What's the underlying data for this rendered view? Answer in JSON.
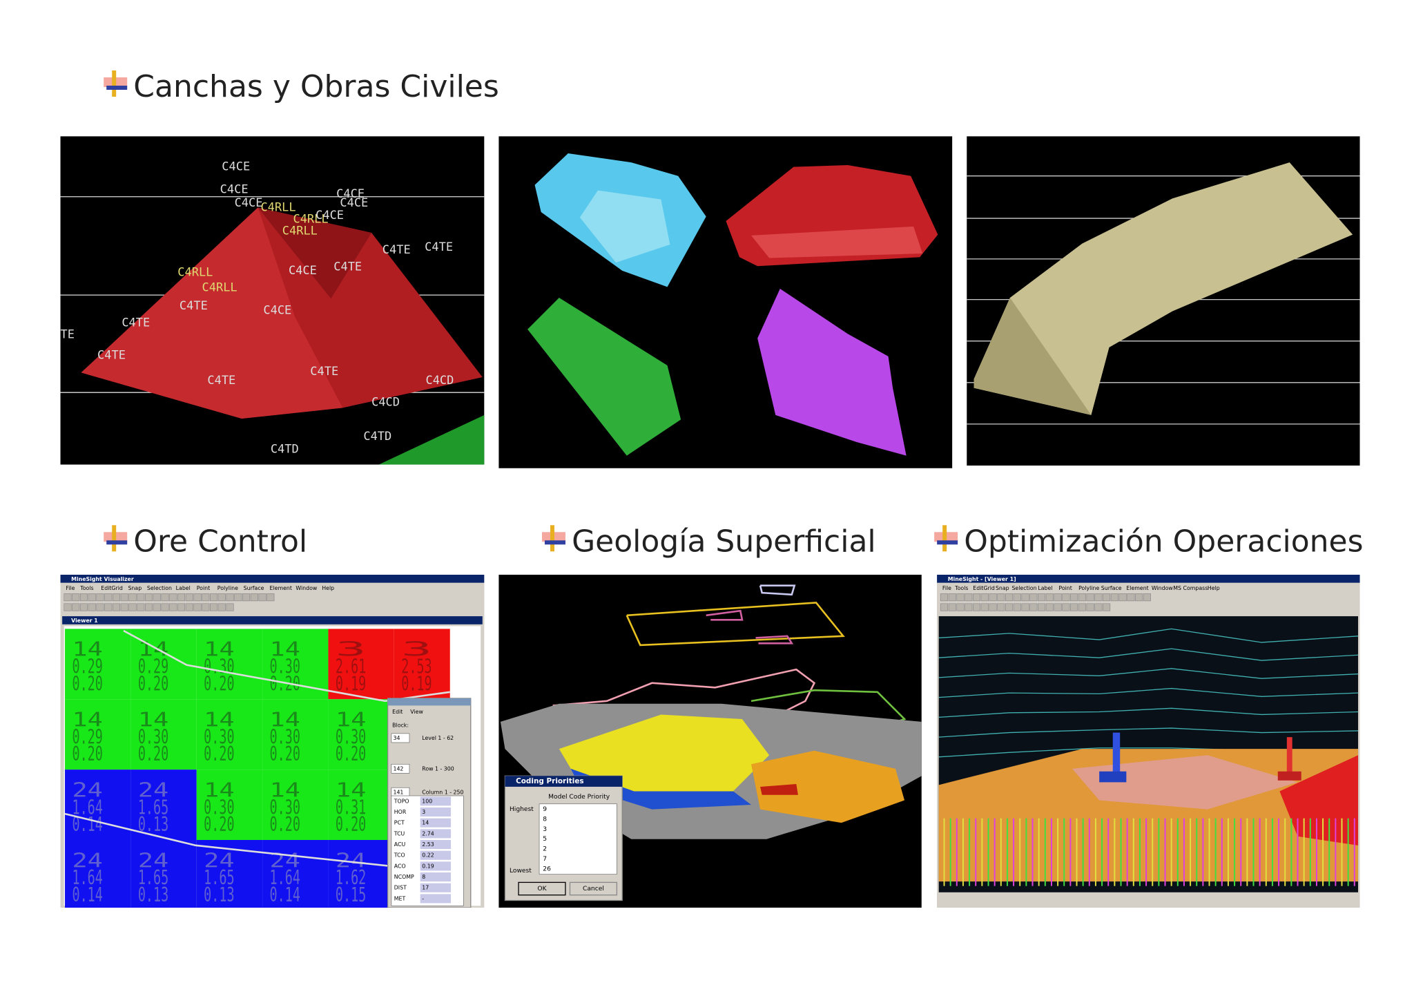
{
  "sections": [
    {
      "title": "Canchas y Obras Civiles"
    },
    {
      "title": "Ore Control"
    },
    {
      "title": "Geología Superficial"
    },
    {
      "title": "Optimización Operaciones"
    }
  ],
  "canchas_labels": [
    "C4CE",
    "C4CE",
    "C4CE",
    "C4RLL",
    "C4CE",
    "C4CE",
    "C4RLL",
    "C4CE",
    "C4RLL",
    "C4TE",
    "C4TE",
    "C4RLL",
    "C4CE",
    "C4TE",
    "C4RLL",
    "C4TE",
    "C4CE",
    "C4TE",
    "TE",
    "C4TE",
    "C4TE",
    "C4TE",
    "C4CD",
    "C4CD",
    "C4TD",
    "C4TD"
  ],
  "ore_control": {
    "window_title": "MineSight Visualizer",
    "menu": [
      "File",
      "Tools",
      "EditGrid",
      "Snap",
      "Selection",
      "Label",
      "Point",
      "Polyline",
      "Surface",
      "Element",
      "Window",
      "Help"
    ],
    "viewer_title": "Viewer 1",
    "grid": [
      [
        [
          "14",
          "0.29",
          "0.20"
        ],
        [
          "14",
          "0.29",
          "0.20"
        ],
        [
          "14",
          "0.30",
          "0.20"
        ],
        [
          "14",
          "0.30",
          "0.20"
        ],
        [
          "3",
          "2.61",
          "0.19"
        ],
        [
          "3",
          "2.53",
          "0.19"
        ]
      ],
      [
        [
          "14",
          "0.29",
          "0.20"
        ],
        [
          "14",
          "0.30",
          "0.20"
        ],
        [
          "14",
          "0.30",
          "0.20"
        ],
        [
          "14",
          "0.30",
          "0.20"
        ],
        [
          "14",
          "0.30",
          "0.20"
        ]
      ],
      [
        [
          "24",
          "1.64",
          "0.14"
        ],
        [
          "24",
          "1.65",
          "0.13"
        ],
        [
          "14",
          "0.30",
          "0.20"
        ],
        [
          "14",
          "0.30",
          "0.20"
        ],
        [
          "14",
          "0.31",
          "0.20"
        ]
      ],
      [
        [
          "24",
          "1.64",
          "0.14"
        ],
        [
          "24",
          "1.65",
          "0.13"
        ],
        [
          "24",
          "1.65",
          "0.13"
        ],
        [
          "24",
          "1.64",
          "0.14"
        ],
        [
          "24",
          "1.62",
          "0.15"
        ]
      ]
    ],
    "dialog": {
      "menu": [
        "Edit",
        "View"
      ],
      "block_label": "Block:",
      "fields": [
        {
          "value": "34",
          "range": "Level 1 - 62"
        },
        {
          "value": "142",
          "range": "Row 1 - 300"
        },
        {
          "value": "141",
          "range": "Column 1 - 250"
        }
      ],
      "items": [
        [
          "TOPO",
          "100"
        ],
        [
          "HOR",
          "3"
        ],
        [
          "PCT",
          "14"
        ],
        [
          "TCU",
          "2.74"
        ],
        [
          "ACU",
          "2.53"
        ],
        [
          "TCO",
          "0.22"
        ],
        [
          "ACO",
          "0.19"
        ],
        [
          "NCOMP",
          "8"
        ],
        [
          "DIST",
          "17"
        ],
        [
          "MET",
          "-"
        ]
      ]
    }
  },
  "geologia": {
    "dialog": {
      "title": "Coding Priorities",
      "heading": "Model Code Priority",
      "highest": "Highest",
      "lowest": "Lowest",
      "codes": [
        "9",
        "8",
        "3",
        "5",
        "2",
        "7",
        "26"
      ],
      "ok": "OK",
      "cancel": "Cancel"
    }
  },
  "optimizacion": {
    "window_title": "MineSight - [Viewer 1]",
    "menu": [
      "File",
      "Tools",
      "EditGrid",
      "Snap",
      "Selection",
      "Label",
      "Point",
      "Polyline",
      "Surface",
      "Element",
      "Window",
      "MS Compass",
      "Help"
    ]
  }
}
